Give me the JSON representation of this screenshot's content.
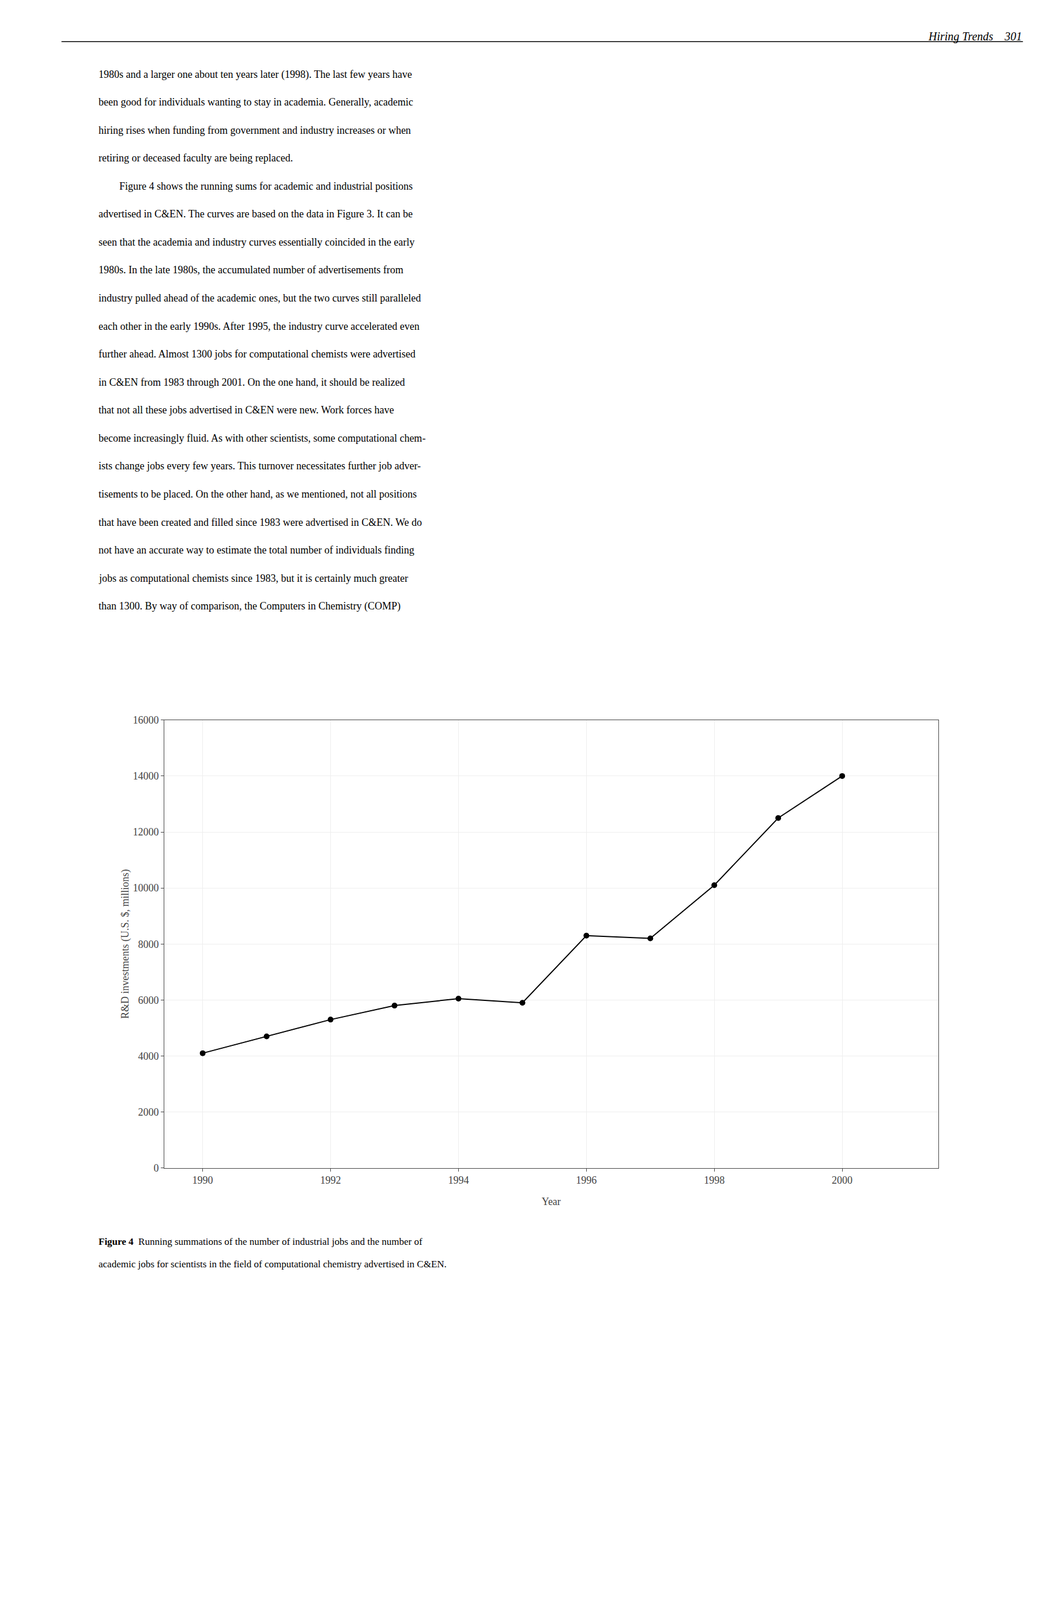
{
  "chart_data": {
    "type": "line",
    "xlabel": "Year",
    "ylabel": "R&D investments (U.S. $, millions)",
    "x": [
      1990,
      1991,
      1992,
      1993,
      1994,
      1995,
      1996,
      1997,
      1998,
      1999,
      2000
    ],
    "values": [
      4100,
      4700,
      5300,
      5800,
      6050,
      5900,
      8300,
      8200,
      10100,
      12500,
      14000
    ],
    "color": "#000000",
    "marker": "circle",
    "line_style": "solid",
    "xlim": [
      1989.4,
      2001.5
    ],
    "ylim": [
      0,
      16000
    ],
    "xticks": [
      1990,
      1992,
      1994,
      1996,
      1998,
      2000
    ],
    "yticks": [
      0,
      2000,
      4000,
      6000,
      8000,
      10000,
      12000,
      14000,
      16000
    ],
    "grid": true,
    "annotations": [
      "Hiring Trends    301",
      "1980s and a larger one about ten years later (1998). The last few years have",
      "been good for individuals wanting to stay in academia. Generally, academic",
      "hiring rises when funding from government and industry increases or when",
      "retiring or deceased faculty are being replaced.",
      "        Figure 4 shows the running sums for academic and industrial positions",
      "advertised in C&EN. The curves are based on the data in Figure 3. It can be",
      "seen that the academia and industry curves essentially coincided in the early",
      "1980s. In the late 1980s, the accumulated number of advertisements from",
      "industry pulled ahead of the academic ones, but the two curves still paralleled",
      "each other in the early 1990s. After 1995, the industry curve accelerated even",
      "further ahead. Almost 1300 jobs for computational chemists were advertised",
      "in C&EN from 1983 through 2001. On the one hand, it should be realized",
      "that not all these jobs advertised in C&EN were new. Work forces have",
      "become increasingly fluid. As with other scientists, some computational chem-",
      "ists change jobs every few years. This turnover necessitates further job adver-",
      "tisements to be placed. On the other hand, as we mentioned, not all positions",
      "that have been created and filled since 1983 were advertised in C&EN. We do",
      "not have an accurate way to estimate the total number of individuals finding",
      "jobs as computational chemists since 1983, but it is certainly much greater",
      "than 1300. By way of comparison, the Computers in Chemistry (COMP)",
      "Figure 4",
      "  Running summations of the number of industrial jobs and the number of",
      "academic jobs for scientists in the field of computational chemistry advertised in C&EN."
    ]
  }
}
